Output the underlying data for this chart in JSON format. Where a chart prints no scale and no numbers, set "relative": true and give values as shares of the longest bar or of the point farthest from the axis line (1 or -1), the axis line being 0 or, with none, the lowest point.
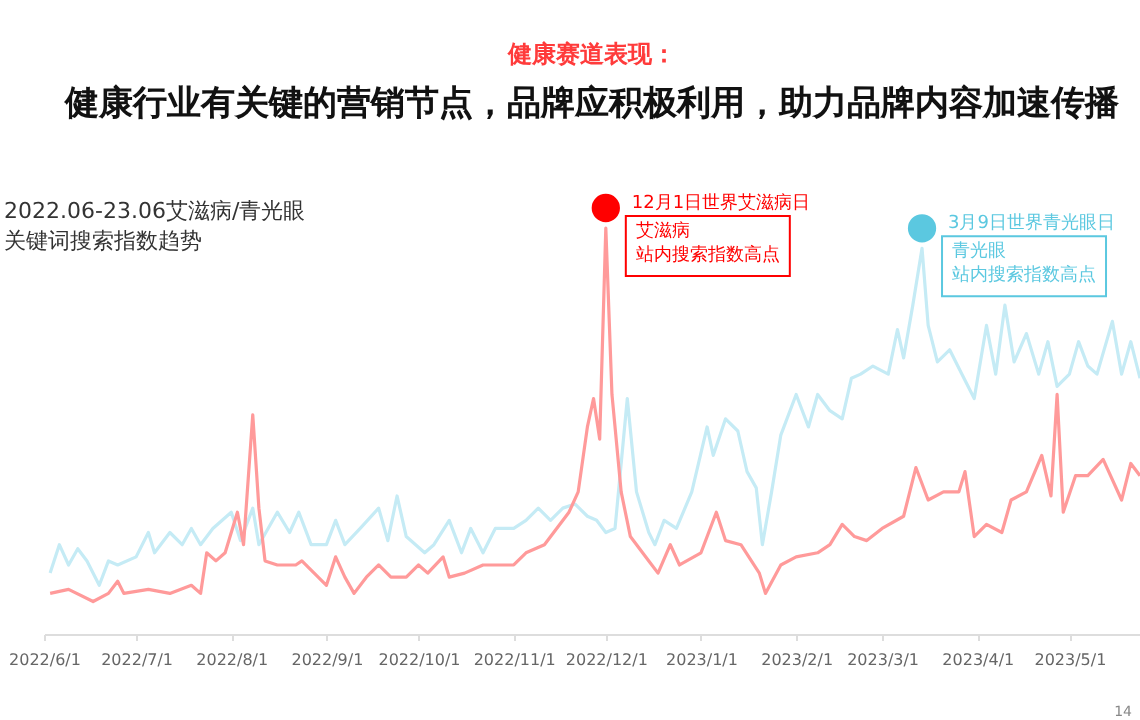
{
  "chart_data": {
    "type": "line",
    "title": "健康赛道表现：",
    "subtitle": "健康行业有关键的营销节点，品牌应积极利用，助力品牌内容加速传播",
    "relative": true,
    "xlim": [
      "2022-06-01",
      "2023-05-24"
    ],
    "xticks": [
      {
        "value": "2022-06-01",
        "label": "2022/6/1"
      },
      {
        "value": "2022-07-01",
        "label": "2022/7/1"
      },
      {
        "value": "2022-08-01",
        "label": "2022/8/1"
      },
      {
        "value": "2022-09-01",
        "label": "2022/9/1"
      },
      {
        "value": "2022-10-01",
        "label": "2022/10/1"
      },
      {
        "value": "2022-11-01",
        "label": "2022/11/1"
      },
      {
        "value": "2022-12-01",
        "label": "2022/12/1"
      },
      {
        "value": "2023-01-01",
        "label": "2023/1/1"
      },
      {
        "value": "2023-02-01",
        "label": "2023/2/1"
      },
      {
        "value": "2023-03-01",
        "label": "2023/3/1"
      },
      {
        "value": "2023-04-01",
        "label": "2023/4/1"
      },
      {
        "value": "2023-05-01",
        "label": "2023/5/1"
      }
    ],
    "grid": false,
    "series": [
      {
        "color": "#c5ebf5",
        "x": [
          "2022-06-03",
          "2022-06-06",
          "2022-06-09",
          "2022-06-12",
          "2022-06-15",
          "2022-06-19",
          "2022-06-22",
          "2022-06-25",
          "2022-07-01",
          "2022-07-05",
          "2022-07-07",
          "2022-07-12",
          "2022-07-16",
          "2022-07-19",
          "2022-07-22",
          "2022-07-26",
          "2022-08-01",
          "2022-08-04",
          "2022-08-08",
          "2022-08-10",
          "2022-08-16",
          "2022-08-20",
          "2022-08-23",
          "2022-08-27",
          "2022-09-01",
          "2022-09-04",
          "2022-09-07",
          "2022-09-12",
          "2022-09-18",
          "2022-09-21",
          "2022-09-24",
          "2022-09-27",
          "2022-10-03",
          "2022-10-06",
          "2022-10-11",
          "2022-10-15",
          "2022-10-18",
          "2022-10-22",
          "2022-10-26",
          "2022-11-01",
          "2022-11-05",
          "2022-11-09",
          "2022-11-13",
          "2022-11-17",
          "2022-11-21",
          "2022-11-25",
          "2022-11-28",
          "2022-12-01",
          "2022-12-04",
          "2022-12-08",
          "2022-12-11",
          "2022-12-15",
          "2022-12-17",
          "2022-12-20",
          "2022-12-24",
          "2022-12-29",
          "2023-01-03",
          "2023-01-05",
          "2023-01-09",
          "2023-01-13",
          "2023-01-16",
          "2023-01-19",
          "2023-01-21",
          "2023-01-24",
          "2023-01-27",
          "2023-02-01",
          "2023-02-05",
          "2023-02-08",
          "2023-02-12",
          "2023-02-16",
          "2023-02-19",
          "2023-02-22",
          "2023-02-26",
          "2023-03-03",
          "2023-03-06",
          "2023-03-08",
          "2023-03-11",
          "2023-03-14",
          "2023-03-16",
          "2023-03-19",
          "2023-03-23",
          "2023-03-27",
          "2023-03-31",
          "2023-04-04",
          "2023-04-07",
          "2023-04-10",
          "2023-04-13",
          "2023-04-17",
          "2023-04-21",
          "2023-04-24",
          "2023-04-27",
          "2023-05-01",
          "2023-05-04",
          "2023-05-07",
          "2023-05-10",
          "2023-05-15",
          "2023-05-18",
          "2023-05-21",
          "2023-05-24"
        ],
        "values": [
          0.15,
          0.22,
          0.17,
          0.21,
          0.18,
          0.12,
          0.18,
          0.17,
          0.19,
          0.25,
          0.2,
          0.25,
          0.22,
          0.26,
          0.22,
          0.26,
          0.3,
          0.23,
          0.31,
          0.22,
          0.3,
          0.25,
          0.3,
          0.22,
          0.22,
          0.28,
          0.22,
          0.26,
          0.31,
          0.23,
          0.34,
          0.24,
          0.2,
          0.22,
          0.28,
          0.2,
          0.26,
          0.2,
          0.26,
          0.26,
          0.28,
          0.31,
          0.28,
          0.31,
          0.32,
          0.29,
          0.28,
          0.25,
          0.26,
          0.58,
          0.35,
          0.25,
          0.22,
          0.28,
          0.26,
          0.35,
          0.51,
          0.44,
          0.53,
          0.5,
          0.4,
          0.36,
          0.22,
          0.35,
          0.49,
          0.59,
          0.51,
          0.59,
          0.55,
          0.53,
          0.63,
          0.64,
          0.66,
          0.64,
          0.75,
          0.68,
          0.81,
          0.95,
          0.76,
          0.67,
          0.7,
          0.64,
          0.58,
          0.76,
          0.64,
          0.81,
          0.67,
          0.74,
          0.64,
          0.72,
          0.61,
          0.64,
          0.72,
          0.66,
          0.64,
          0.77,
          0.64,
          0.72,
          0.63
        ]
      },
      {
        "color": "#ff9a9a",
        "x": [
          "2022-06-03",
          "2022-06-09",
          "2022-06-17",
          "2022-06-22",
          "2022-06-25",
          "2022-06-27",
          "2022-07-05",
          "2022-07-12",
          "2022-07-19",
          "2022-07-22",
          "2022-07-24",
          "2022-07-27",
          "2022-07-30",
          "2022-08-03",
          "2022-08-05",
          "2022-08-08",
          "2022-08-10",
          "2022-08-12",
          "2022-08-16",
          "2022-08-22",
          "2022-08-24",
          "2022-08-28",
          "2022-09-01",
          "2022-09-04",
          "2022-09-07",
          "2022-09-10",
          "2022-09-14",
          "2022-09-18",
          "2022-09-22",
          "2022-09-27",
          "2022-10-01",
          "2022-10-04",
          "2022-10-09",
          "2022-10-11",
          "2022-10-16",
          "2022-10-22",
          "2022-11-01",
          "2022-11-05",
          "2022-11-11",
          "2022-11-15",
          "2022-11-19",
          "2022-11-22",
          "2022-11-25",
          "2022-11-27",
          "2022-11-29",
          "2022-12-01",
          "2022-12-03",
          "2022-12-06",
          "2022-12-09",
          "2022-12-15",
          "2022-12-18",
          "2022-12-22",
          "2022-12-25",
          "2023-01-01",
          "2023-01-06",
          "2023-01-09",
          "2023-01-14",
          "2023-01-20",
          "2023-01-22",
          "2023-01-27",
          "2023-02-01",
          "2023-02-08",
          "2023-02-12",
          "2023-02-16",
          "2023-02-20",
          "2023-02-24",
          "2023-03-01",
          "2023-03-08",
          "2023-03-12",
          "2023-03-16",
          "2023-03-21",
          "2023-03-26",
          "2023-03-28",
          "2023-03-31",
          "2023-04-04",
          "2023-04-09",
          "2023-04-12",
          "2023-04-17",
          "2023-04-22",
          "2023-04-25",
          "2023-04-27",
          "2023-04-29",
          "2023-05-03",
          "2023-05-07",
          "2023-05-12",
          "2023-05-18",
          "2023-05-21",
          "2023-05-24"
        ],
        "values": [
          0.1,
          0.11,
          0.08,
          0.1,
          0.13,
          0.1,
          0.11,
          0.1,
          0.12,
          0.1,
          0.2,
          0.18,
          0.2,
          0.3,
          0.22,
          0.54,
          0.31,
          0.18,
          0.17,
          0.17,
          0.18,
          0.15,
          0.12,
          0.19,
          0.14,
          0.1,
          0.14,
          0.17,
          0.14,
          0.14,
          0.17,
          0.15,
          0.19,
          0.14,
          0.15,
          0.17,
          0.17,
          0.2,
          0.22,
          0.26,
          0.3,
          0.35,
          0.51,
          0.58,
          0.48,
          1,
          0.59,
          0.35,
          0.24,
          0.18,
          0.15,
          0.22,
          0.17,
          0.2,
          0.3,
          0.23,
          0.22,
          0.15,
          0.1,
          0.17,
          0.19,
          0.2,
          0.22,
          0.27,
          0.24,
          0.23,
          0.26,
          0.29,
          0.41,
          0.33,
          0.35,
          0.35,
          0.4,
          0.24,
          0.27,
          0.25,
          0.33,
          0.35,
          0.44,
          0.34,
          0.59,
          0.3,
          0.39,
          0.39,
          0.43,
          0.33,
          0.42,
          0.39
        ]
      }
    ],
    "annotations": [
      "2022.06-23.06艾滋病/青光眼",
      "关键词搜索指数趋势",
      {
        "text": "12月1日世界艾滋病日",
        "x": "2022-12-01",
        "y": 1
      },
      {
        "text": "艾滋病",
        "x": "2022-12-01",
        "y": 1
      },
      {
        "text": "站内搜索指数高点",
        "x": "2022-12-01",
        "y": 1
      },
      {
        "text": "3月9日世界青光眼日",
        "x": "2023-03-14",
        "y": 0.95
      },
      {
        "text": "青光眼",
        "x": "2023-03-14",
        "y": 0.95
      },
      {
        "text": "站内搜索指数高点",
        "x": "2023-03-14",
        "y": 0.95
      },
      "14"
    ]
  }
}
